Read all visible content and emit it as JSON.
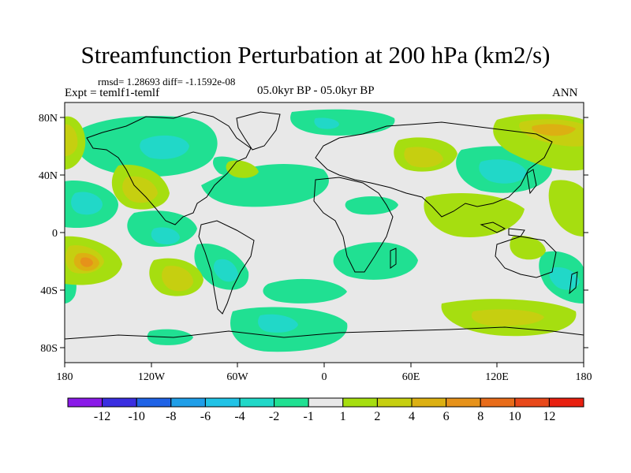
{
  "title": "Streamfunction Perturbation at 200 hPa (km2/s)",
  "stats": "rmsd= 1.28693 diff= -1.1592e-08",
  "expt": "Expt = temlf1-temlf",
  "period": "05.0kyr BP - 05.0kyr BP",
  "season": "ANN",
  "lat_labels": [
    "80N",
    "40N",
    "0",
    "40S",
    "80S"
  ],
  "lon_labels": [
    "180",
    "120W",
    "60W",
    "0",
    "60E",
    "120E",
    "180"
  ],
  "colorbar": {
    "labels": [
      "-12",
      "-10",
      "-8",
      "-6",
      "-4",
      "-2",
      "-1",
      "1",
      "2",
      "4",
      "6",
      "8",
      "10",
      "12"
    ],
    "colors": [
      "#8a1ae8",
      "#3a2ee0",
      "#1f63e6",
      "#1f9ee8",
      "#21c3e6",
      "#21d8c8",
      "#20e092",
      "#e8e8e8",
      "#a6de10",
      "#c6cf10",
      "#dcb012",
      "#e6921a",
      "#e86c1a",
      "#e8481a",
      "#e82010"
    ]
  },
  "colors": {
    "neutral": "#e8e8e8",
    "neg1": "#20e092",
    "neg2": "#21d8c8",
    "neg3": "#21c3e6",
    "pos1": "#a6de10",
    "pos2": "#c6cf10",
    "pos3": "#dcb012",
    "pos4": "#e6921a"
  }
}
